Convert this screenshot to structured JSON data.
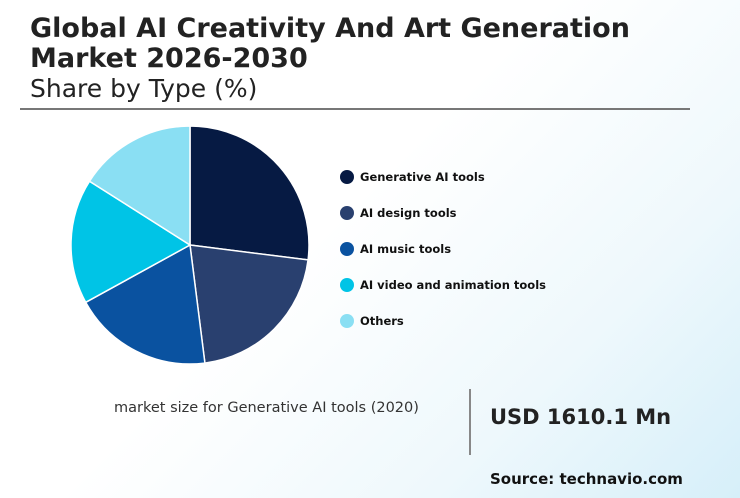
{
  "header": {
    "title": "Global AI Creativity And Art Generation Market 2026-2030",
    "subtitle": "Share by Type (%)"
  },
  "chart_data": {
    "type": "pie",
    "title": "Global AI Creativity And Art Generation Market 2026-2030",
    "subtitle": "Share by Type (%)",
    "legend_position": "right",
    "categories": [
      "Generative AI tools",
      "AI design tools",
      "AI music tools",
      "AI video and animation tools",
      "Others"
    ],
    "values": [
      27,
      21,
      19,
      17,
      16
    ],
    "colors": [
      "#061a43",
      "#29406f",
      "#0a52a0",
      "#00c4e6",
      "#8adff3"
    ],
    "start_angle_deg": 0,
    "direction": "clockwise"
  },
  "stat": {
    "label": "market size for Generative AI tools (2020)",
    "value": "USD 1610.1 Mn"
  },
  "footer": {
    "source": "Source: technavio.com"
  }
}
